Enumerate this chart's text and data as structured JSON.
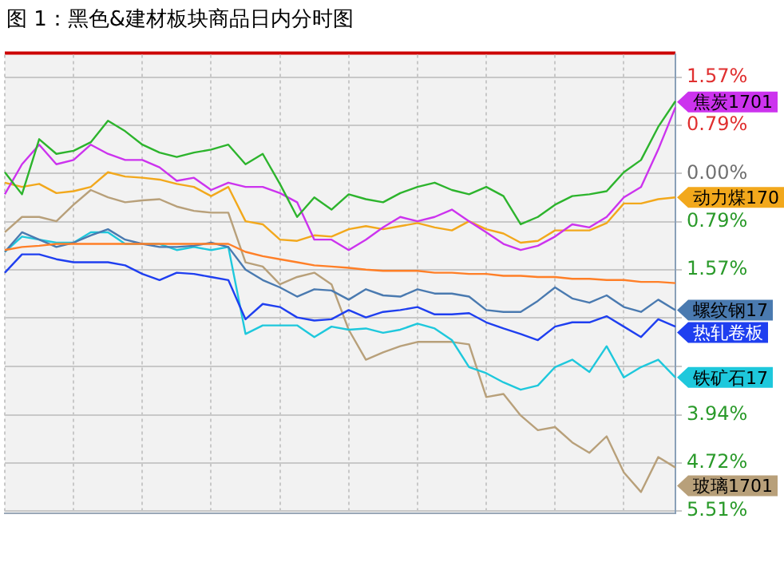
{
  "chart_data": {
    "type": "line",
    "title": "图 1：黑色&建材板块商品日内分时图",
    "categories": [
      null,
      null,
      null,
      null,
      null,
      null,
      null,
      null,
      null,
      null,
      null,
      null,
      null,
      null,
      null,
      null,
      null,
      null,
      null,
      null,
      null,
      null,
      null,
      null,
      null,
      null,
      null,
      null,
      null,
      null,
      null,
      null,
      null,
      null,
      null,
      null,
      null,
      null,
      null,
      null
    ],
    "series": [
      {
        "color": "#2db42d",
        "values": [
          0.02,
          -0.34,
          0.56,
          0.32,
          0.37,
          0.51,
          0.86,
          0.69,
          0.47,
          0.34,
          0.27,
          0.34,
          0.39,
          0.47,
          0.15,
          0.32,
          -0.17,
          -0.71,
          -0.39,
          -0.59,
          -0.34,
          -0.42,
          -0.47,
          -0.32,
          -0.22,
          -0.15,
          -0.27,
          -0.34,
          -0.22,
          -0.37,
          -0.83,
          -0.71,
          -0.51,
          -0.37,
          -0.34,
          -0.29,
          0.02,
          0.22,
          0.76,
          1.18
        ]
      },
      {
        "name": "焦炭1701",
        "color": "#cc33ee",
        "values": [
          -0.34,
          0.15,
          0.47,
          0.15,
          0.22,
          0.47,
          0.32,
          0.22,
          0.22,
          0.1,
          -0.12,
          -0.07,
          -0.27,
          -0.15,
          -0.22,
          -0.22,
          -0.32,
          -0.47,
          -1.08,
          -1.08,
          -1.25,
          -1.08,
          -0.88,
          -0.71,
          -0.78,
          -0.71,
          -0.59,
          -0.78,
          -0.96,
          -1.15,
          -1.25,
          -1.18,
          -1.03,
          -0.83,
          -0.88,
          -0.71,
          -0.39,
          -0.22,
          0.39,
          1.08
        ]
      },
      {
        "name": "动力煤170",
        "color": "#f2a81c",
        "values": [
          -0.15,
          -0.22,
          -0.17,
          -0.32,
          -0.29,
          -0.22,
          0.02,
          -0.05,
          -0.07,
          -0.1,
          -0.17,
          -0.22,
          -0.37,
          -0.22,
          -0.78,
          -0.83,
          -1.08,
          -1.1,
          -1.01,
          -1.03,
          -0.91,
          -0.86,
          -0.91,
          -0.86,
          -0.81,
          -0.88,
          -0.93,
          -0.78,
          -0.91,
          -0.98,
          -1.13,
          -1.1,
          -0.93,
          -0.93,
          -0.93,
          -0.81,
          -0.49,
          -0.49,
          -0.42,
          -0.39
        ]
      },
      {
        "color": "#ff7f27",
        "values": [
          -1.25,
          -1.2,
          -1.18,
          -1.15,
          -1.15,
          -1.15,
          -1.15,
          -1.15,
          -1.15,
          -1.15,
          -1.15,
          -1.15,
          -1.15,
          -1.15,
          -1.28,
          -1.35,
          -1.4,
          -1.45,
          -1.5,
          -1.52,
          -1.54,
          -1.57,
          -1.59,
          -1.59,
          -1.59,
          -1.62,
          -1.62,
          -1.64,
          -1.64,
          -1.67,
          -1.67,
          -1.69,
          -1.69,
          -1.72,
          -1.72,
          -1.74,
          -1.74,
          -1.77,
          -1.77,
          -1.79
        ]
      },
      {
        "name": "螺纹钢17",
        "color": "#4a7ab0",
        "values": [
          -1.28,
          -0.96,
          -1.08,
          -1.2,
          -1.13,
          -1.01,
          -0.91,
          -1.08,
          -1.15,
          -1.2,
          -1.2,
          -1.18,
          -1.13,
          -1.2,
          -1.57,
          -1.74,
          -1.86,
          -2.01,
          -1.89,
          -1.91,
          -2.06,
          -1.89,
          -1.99,
          -2.01,
          -1.89,
          -1.96,
          -1.96,
          -2.01,
          -2.23,
          -2.26,
          -2.26,
          -2.08,
          -1.86,
          -2.04,
          -2.11,
          -1.99,
          -2.18,
          -2.26,
          -2.06,
          -2.23
        ]
      },
      {
        "name": "热轧卷板",
        "color": "#1f3ff0",
        "values": [
          -1.62,
          -1.32,
          -1.32,
          -1.4,
          -1.45,
          -1.45,
          -1.45,
          -1.5,
          -1.64,
          -1.74,
          -1.62,
          -1.64,
          -1.69,
          -1.74,
          -2.38,
          -2.13,
          -2.18,
          -2.35,
          -2.4,
          -2.38,
          -2.23,
          -2.35,
          -2.26,
          -2.23,
          -2.18,
          -2.3,
          -2.3,
          -2.28,
          -2.43,
          -2.53,
          -2.62,
          -2.72,
          -2.5,
          -2.43,
          -2.43,
          -2.33,
          -2.5,
          -2.67,
          -2.38,
          -2.5
        ]
      },
      {
        "name": "铁矿石17",
        "color": "#1ec8dc",
        "values": [
          -1.28,
          -1.03,
          -1.08,
          -1.13,
          -1.13,
          -0.96,
          -0.96,
          -1.15,
          -1.15,
          -1.15,
          -1.25,
          -1.2,
          -1.25,
          -1.2,
          -2.62,
          -2.48,
          -2.48,
          -2.48,
          -2.67,
          -2.5,
          -2.55,
          -2.53,
          -2.6,
          -2.55,
          -2.45,
          -2.53,
          -2.72,
          -3.16,
          -3.26,
          -3.41,
          -3.53,
          -3.46,
          -3.16,
          -3.04,
          -3.24,
          -2.82,
          -3.33,
          -3.16,
          -3.04,
          -3.33
        ]
      },
      {
        "name": "玻璃1701",
        "color": "#b8a07a",
        "values": [
          -0.96,
          -0.71,
          -0.71,
          -0.78,
          -0.51,
          -0.27,
          -0.39,
          -0.47,
          -0.44,
          -0.42,
          -0.54,
          -0.61,
          -0.64,
          -0.64,
          -1.45,
          -1.52,
          -1.81,
          -1.69,
          -1.62,
          -1.81,
          -2.55,
          -3.04,
          -2.92,
          -2.82,
          -2.75,
          -2.75,
          -2.75,
          -2.79,
          -3.65,
          -3.6,
          -3.95,
          -4.19,
          -4.14,
          -4.39,
          -4.56,
          -4.29,
          -4.88,
          -5.2,
          -4.63,
          -4.8
        ]
      }
    ],
    "ylim": [
      -5.55,
      1.94
    ],
    "yticks": [
      {
        "value": 1.57,
        "label": "1.57%"
      },
      {
        "value": 0.79,
        "label": "0.79%"
      },
      {
        "value": 0,
        "label": "0.00%"
      },
      {
        "value": -0.79,
        "label": "0.79%"
      },
      {
        "value": -1.57,
        "label": "1.57%"
      },
      {
        "value": -2.36,
        "label": null
      },
      {
        "value": -3.15,
        "label": null
      },
      {
        "value": -3.94,
        "label": "3.94%"
      },
      {
        "value": -4.72,
        "label": "4.72%"
      },
      {
        "value": -5.51,
        "label": "5.51%"
      }
    ],
    "grid": true,
    "legend": false,
    "marker": "none",
    "line_style": "solid"
  }
}
